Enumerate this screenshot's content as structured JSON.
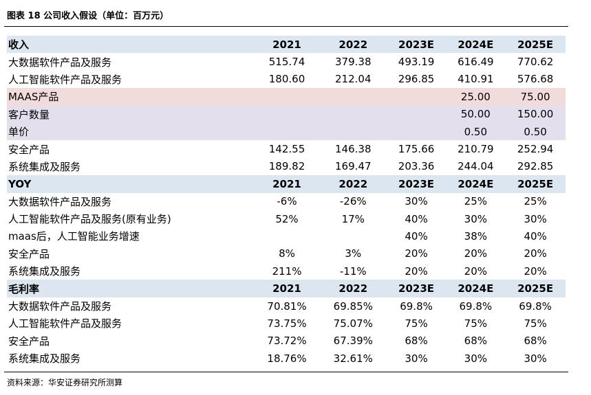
{
  "title": "图表 18 公司收入假设（单位：百万元）",
  "table": {
    "rows": [
      {
        "label": "收入",
        "kind": "header",
        "cells": [
          "2021",
          "2022",
          "2023E",
          "2024E",
          "2025E"
        ]
      },
      {
        "label": "大数据软件产品及服务",
        "kind": "plain",
        "cells": [
          "515.74",
          "379.38",
          "493.19",
          "616.49",
          "770.62"
        ]
      },
      {
        "label": "人工智能软件产品及服务",
        "kind": "plain",
        "cells": [
          "180.60",
          "212.04",
          "296.85",
          "410.91",
          "576.68"
        ]
      },
      {
        "label": "MAAS产品",
        "kind": "pink",
        "cells": [
          null,
          null,
          null,
          "25.00",
          "75.00"
        ]
      },
      {
        "label": "客户数量",
        "kind": "lavender",
        "cells": [
          null,
          null,
          null,
          "50.00",
          "150.00"
        ]
      },
      {
        "label": "单价",
        "kind": "lavender",
        "cells": [
          null,
          null,
          null,
          "0.50",
          "0.50"
        ]
      },
      {
        "label": "安全产品",
        "kind": "plain",
        "cells": [
          "142.55",
          "146.38",
          "175.66",
          "210.79",
          "252.94"
        ]
      },
      {
        "label": "系统集成及服务",
        "kind": "plain",
        "cells": [
          "189.82",
          "169.47",
          "203.36",
          "244.04",
          "292.85"
        ]
      },
      {
        "label": "YOY",
        "kind": "header",
        "cells": [
          "2021",
          "2022",
          "2023E",
          "2024E",
          "2025E"
        ]
      },
      {
        "label": "大数据软件产品及服务",
        "kind": "plain",
        "cells": [
          "-6%",
          "-26%",
          "30%",
          "25%",
          "25%"
        ]
      },
      {
        "label": "人工智能软件产品及服务(原有业务)",
        "kind": "plain",
        "cells": [
          "52%",
          "17%",
          "40%",
          "30%",
          "30%"
        ]
      },
      {
        "label": "maas后，人工智能业务增速",
        "kind": "plain",
        "cells": [
          null,
          null,
          "40%",
          "38%",
          "40%"
        ]
      },
      {
        "label": "安全产品",
        "kind": "plain",
        "cells": [
          "8%",
          "3%",
          "20%",
          "20%",
          "20%"
        ]
      },
      {
        "label": "系统集成及服务",
        "kind": "plain",
        "cells": [
          "211%",
          "-11%",
          "20%",
          "20%",
          "20%"
        ]
      },
      {
        "label": "毛利率",
        "kind": "header",
        "cells": [
          "2021",
          "2022",
          "2023E",
          "2024E",
          "2025E"
        ]
      },
      {
        "label": "大数据软件产品及服务",
        "kind": "plain",
        "cells": [
          "70.81%",
          "69.85%",
          "69.8%",
          "69.8%",
          "69.8%"
        ]
      },
      {
        "label": "人工智能软件产品及服务",
        "kind": "plain",
        "cells": [
          "73.75%",
          "75.07%",
          "75%",
          "75%",
          "75%"
        ]
      },
      {
        "label": "安全产品",
        "kind": "plain",
        "cells": [
          "73.72%",
          "67.39%",
          "68%",
          "68%",
          "68%"
        ]
      },
      {
        "label": "系统集成及服务",
        "kind": "plain",
        "cells": [
          "18.76%",
          "32.61%",
          "30%",
          "30%",
          "30%"
        ]
      }
    ]
  },
  "source": "资料来源：华安证券研究所测算"
}
